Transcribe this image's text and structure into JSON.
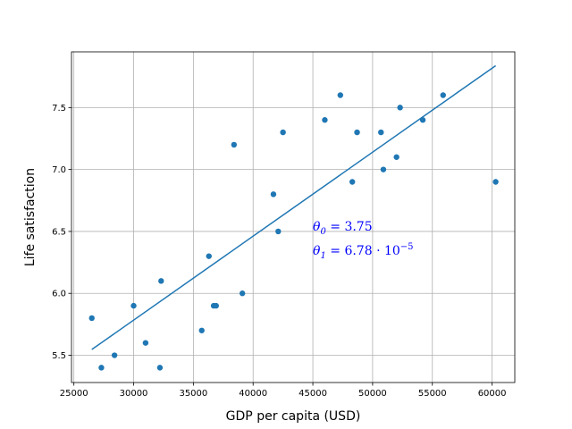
{
  "chart_data": {
    "type": "scatter",
    "xlabel": "GDP per capita (USD)",
    "ylabel": "Life satisfaction",
    "xlim": [
      24800,
      61900
    ],
    "ylim": [
      5.28,
      7.95
    ],
    "xticks": [
      25000,
      30000,
      35000,
      40000,
      45000,
      50000,
      55000,
      60000
    ],
    "yticks": [
      5.5,
      6.0,
      6.5,
      7.0,
      7.5
    ],
    "grid": true,
    "point_color": "#1f77b4",
    "line_color": "#1f77b4",
    "annotation_color": "#0000ff",
    "points": [
      {
        "x": 26500,
        "y": 5.8
      },
      {
        "x": 27300,
        "y": 5.4
      },
      {
        "x": 28400,
        "y": 5.5
      },
      {
        "x": 30000,
        "y": 5.9
      },
      {
        "x": 31000,
        "y": 5.6
      },
      {
        "x": 32200,
        "y": 5.4
      },
      {
        "x": 32300,
        "y": 6.1
      },
      {
        "x": 35700,
        "y": 5.7
      },
      {
        "x": 36300,
        "y": 6.3
      },
      {
        "x": 36700,
        "y": 5.9
      },
      {
        "x": 36900,
        "y": 5.9
      },
      {
        "x": 38400,
        "y": 7.2
      },
      {
        "x": 39100,
        "y": 6.0
      },
      {
        "x": 41700,
        "y": 6.8
      },
      {
        "x": 42100,
        "y": 6.5
      },
      {
        "x": 42500,
        "y": 7.3
      },
      {
        "x": 46000,
        "y": 7.4
      },
      {
        "x": 47300,
        "y": 7.6
      },
      {
        "x": 48300,
        "y": 6.9
      },
      {
        "x": 48700,
        "y": 7.3
      },
      {
        "x": 50700,
        "y": 7.3
      },
      {
        "x": 50900,
        "y": 7.0
      },
      {
        "x": 52000,
        "y": 7.1
      },
      {
        "x": 52300,
        "y": 7.5
      },
      {
        "x": 54200,
        "y": 7.4
      },
      {
        "x": 55900,
        "y": 7.6
      },
      {
        "x": 60300,
        "y": 6.9
      }
    ],
    "fit_line": {
      "theta0": 3.75,
      "theta1": 6.78e-05,
      "x_start": 26500,
      "x_end": 60300
    },
    "annotations": {
      "theta0": {
        "symbol": "θ",
        "sub": "0",
        "rest": " = 3.75"
      },
      "theta1": {
        "symbol": "θ",
        "sub": "1",
        "rest": " = 6.78 · 10",
        "sup": "−5"
      }
    }
  }
}
